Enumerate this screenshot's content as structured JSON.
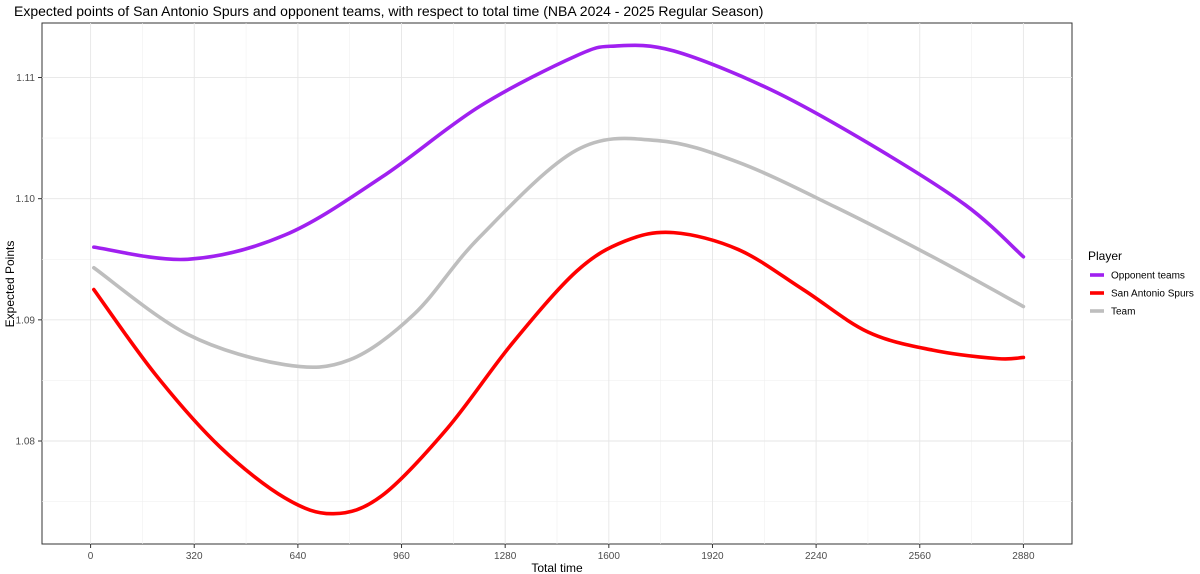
{
  "chart_data": {
    "type": "line",
    "title": "Expected points of San Antonio Spurs and opponent teams, with respect to total time (NBA 2024 - 2025 Regular Season)",
    "xlabel": "Total time",
    "ylabel": "Expected Points",
    "xlim": [
      -150,
      3030
    ],
    "ylim": [
      1.0715,
      1.1145
    ],
    "x_ticks": [
      0,
      320,
      640,
      960,
      1280,
      1600,
      1920,
      2240,
      2560,
      2880
    ],
    "x_tick_labels": [
      "0",
      "320",
      "640",
      "960",
      "1280",
      "1600",
      "1920",
      "2240",
      "2560",
      "2880"
    ],
    "y_ticks": [
      1.08,
      1.09,
      1.1,
      1.11
    ],
    "y_tick_labels": [
      "1.08",
      "1.09",
      "1.10",
      "1.11"
    ],
    "grid": true,
    "legend": {
      "title": "Player",
      "position": "right"
    },
    "series": [
      {
        "name": "Opponent teams",
        "color": "#A020F0",
        "x": [
          10,
          300,
          600,
          900,
          1200,
          1500,
          1620,
          1800,
          2100,
          2400,
          2700,
          2880
        ],
        "y": [
          1.096,
          1.095,
          1.097,
          1.1018,
          1.1076,
          1.1118,
          1.1126,
          1.1122,
          1.109,
          1.1046,
          1.0995,
          1.0952
        ]
      },
      {
        "name": "San Antonio Spurs",
        "color": "#FF0000",
        "x": [
          10,
          200,
          400,
          600,
          750,
          900,
          1100,
          1300,
          1500,
          1650,
          1800,
          2000,
          2200,
          2400,
          2600,
          2800,
          2880
        ],
        "y": [
          1.0925,
          1.0855,
          1.0795,
          1.0753,
          1.074,
          1.0755,
          1.081,
          1.088,
          1.094,
          1.0965,
          1.0972,
          1.0958,
          1.0925,
          1.089,
          1.0875,
          1.0868,
          1.0869
        ]
      },
      {
        "name": "Team",
        "color": "#BEBEBE",
        "x": [
          10,
          300,
          600,
          800,
          1000,
          1200,
          1500,
          1750,
          2000,
          2300,
          2600,
          2880
        ],
        "y": [
          1.0943,
          1.0888,
          1.0863,
          1.0867,
          1.0905,
          1.0968,
          1.104,
          1.1048,
          1.103,
          1.0993,
          1.0952,
          1.0911
        ]
      }
    ]
  }
}
